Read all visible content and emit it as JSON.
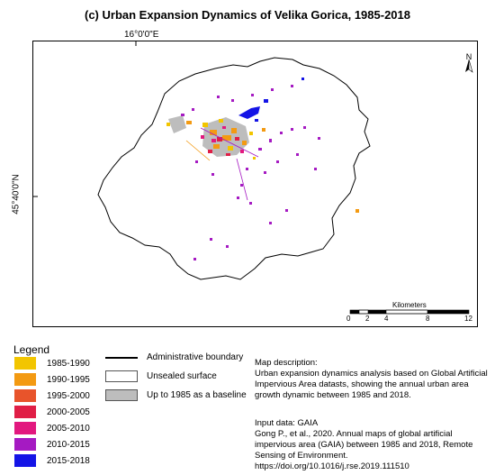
{
  "title": "(c)  Urban Expansion Dynamics of Velika Gorica, 1985-2018",
  "longitude_label": "16°0'0\"E",
  "latitude_label": "45°40'0\"N",
  "north_arrow": "N",
  "scale_bar": {
    "title": "Kilometers",
    "ticks": [
      "0",
      "2",
      "4",
      "8",
      "12"
    ]
  },
  "legend": {
    "title": "Legend",
    "periods": [
      {
        "label": "1985-1990",
        "color": "#f2c500"
      },
      {
        "label": "1990-1995",
        "color": "#f39a12"
      },
      {
        "label": "1995-2000",
        "color": "#e8542b"
      },
      {
        "label": "2000-2005",
        "color": "#e01e46"
      },
      {
        "label": "2005-2010",
        "color": "#e2187f"
      },
      {
        "label": "2010-2015",
        "color": "#a51ac2"
      },
      {
        "label": "2015-2018",
        "color": "#1414e6"
      }
    ],
    "boundary": {
      "label": "Administrative boundary"
    },
    "unsealed": {
      "label": "Unsealed surface",
      "color": "#ffffff"
    },
    "baseline": {
      "label": "Up to 1985 as a baseline",
      "color": "#bdbdbd"
    }
  },
  "description": {
    "heading": "Map description:",
    "text": "Urban expansion dynamics analysis based on Global Artificial Impervious Area datasts, showing the annual urban area growth dynamic between 1985 and 2018."
  },
  "input_data": {
    "heading": "Input data: GAIA",
    "citation": "Gong P., et al., 2020. Annual maps of global artificial impervious area (GAIA) between 1985 and 2018, Remote Sensing of Environment. https://doi.org/10.1016/j.rse.2019.111510"
  }
}
